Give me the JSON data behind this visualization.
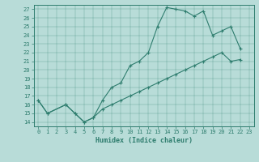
{
  "title": "",
  "xlabel": "Humidex (Indice chaleur)",
  "xlim": [
    -0.5,
    23.5
  ],
  "ylim": [
    13.5,
    27.5
  ],
  "xticks": [
    0,
    1,
    2,
    3,
    4,
    5,
    6,
    7,
    8,
    9,
    10,
    11,
    12,
    13,
    14,
    15,
    16,
    17,
    18,
    19,
    20,
    21,
    22,
    23
  ],
  "yticks": [
    14,
    15,
    16,
    17,
    18,
    19,
    20,
    21,
    22,
    23,
    24,
    25,
    26,
    27
  ],
  "line_color": "#2e7d6e",
  "background_color": "#b8dcd8",
  "line1_x": [
    0,
    1,
    3,
    4,
    5,
    6,
    7,
    8,
    9,
    10,
    11,
    12,
    13,
    14,
    15,
    16,
    17,
    18,
    19,
    20,
    21,
    22
  ],
  "line1_y": [
    16.5,
    15.0,
    16.0,
    15.0,
    14.0,
    14.5,
    16.5,
    18.0,
    18.5,
    20.5,
    21.0,
    22.0,
    25.0,
    27.2,
    27.0,
    26.8,
    26.2,
    26.8,
    24.0,
    24.5,
    25.0,
    22.5
  ],
  "line2_x": [
    0,
    1,
    3,
    4,
    5,
    6,
    7,
    8,
    9,
    10,
    11,
    12,
    13,
    14,
    15,
    16,
    17,
    18,
    19,
    20,
    21,
    22
  ],
  "line2_y": [
    16.5,
    15.0,
    16.0,
    15.0,
    14.0,
    14.5,
    15.5,
    16.0,
    16.5,
    17.0,
    17.5,
    18.0,
    18.5,
    19.0,
    19.5,
    20.0,
    20.5,
    21.0,
    21.5,
    22.0,
    21.0,
    21.2
  ],
  "marker": "+",
  "tick_fontsize": 5,
  "xlabel_fontsize": 6
}
